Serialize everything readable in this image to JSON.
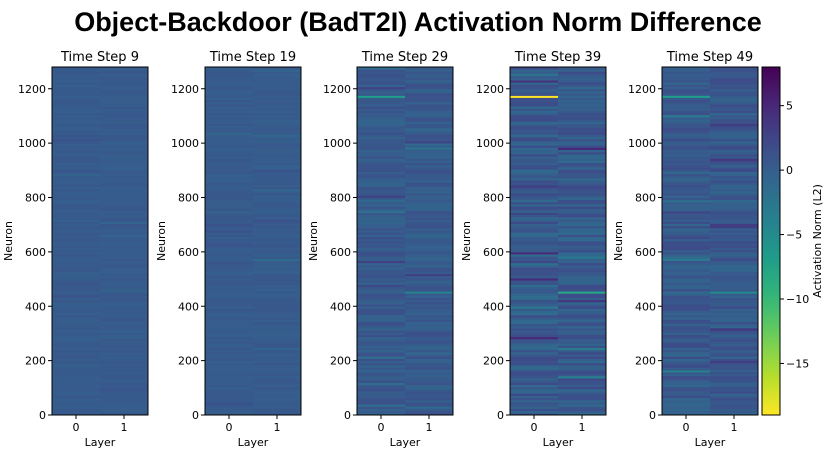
{
  "suptitle": "Object-Backdoor (BadT2I) Activation Norm Difference",
  "chart_data": {
    "type": "heatmap",
    "colormap": "viridis_r",
    "colorbar": {
      "label": "Activation Norm (L2)",
      "range": [
        -19,
        8
      ],
      "ticks": [
        5,
        0,
        -5,
        -10,
        -15
      ],
      "tick_labels": [
        "5",
        "0",
        "−5",
        "−10",
        "−15"
      ]
    },
    "shared_axes": {
      "xlabel": "Layer",
      "ylabel": "Neuron",
      "x_categories": [
        "0",
        "1"
      ],
      "y_ticks": [
        0,
        200,
        400,
        600,
        800,
        1000,
        1200
      ],
      "ylim": [
        0,
        1280
      ]
    },
    "panels": [
      {
        "title": "Time Step 9",
        "baseline": 0.3,
        "variation": 0.35,
        "seed": 9,
        "highlights": []
      },
      {
        "title": "Time Step 19",
        "baseline": 0.3,
        "variation": 0.4,
        "seed": 19,
        "highlights": [
          {
            "layer": 1,
            "neuron": 570,
            "value": -1.5
          }
        ]
      },
      {
        "title": "Time Step 29",
        "baseline": 0.4,
        "variation": 1.0,
        "seed": 29,
        "highlights": [
          {
            "layer": 0,
            "neuron": 1170,
            "value": -7
          },
          {
            "layer": 1,
            "neuron": 450,
            "value": -4
          },
          {
            "layer": 1,
            "neuron": 980,
            "value": -2.5
          }
        ]
      },
      {
        "title": "Time Step 39",
        "baseline": 0.5,
        "variation": 1.7,
        "seed": 39,
        "highlights": [
          {
            "layer": 0,
            "neuron": 1170,
            "value": -19
          },
          {
            "layer": 1,
            "neuron": 450,
            "value": -8
          },
          {
            "layer": 0,
            "neuron": 840,
            "value": 3
          },
          {
            "layer": 0,
            "neuron": 740,
            "value": 2.5
          }
        ]
      },
      {
        "title": "Time Step 49",
        "baseline": 0.5,
        "variation": 1.4,
        "seed": 49,
        "highlights": [
          {
            "layer": 0,
            "neuron": 1170,
            "value": -7
          },
          {
            "layer": 1,
            "neuron": 450,
            "value": -5
          },
          {
            "layer": 0,
            "neuron": 160,
            "value": -4
          },
          {
            "layer": 0,
            "neuron": 745,
            "value": 2.5
          }
        ]
      }
    ]
  }
}
